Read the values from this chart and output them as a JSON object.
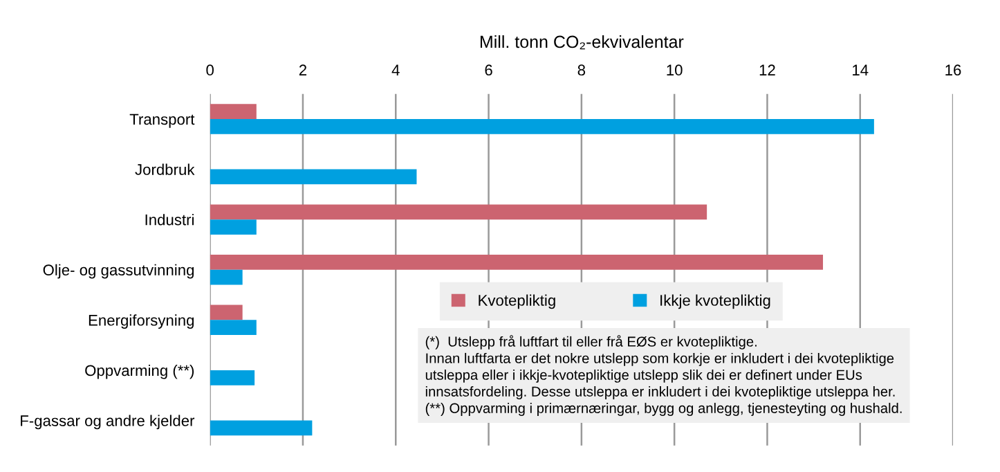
{
  "chart_data": {
    "type": "bar",
    "orientation": "horizontal",
    "title": "Mill. tonn CO₂-ekvivalentar",
    "categories": [
      "Transport",
      "Jordbruk",
      "Industri",
      "Olje- og gassutvinning",
      "Energiforsyning",
      "Oppvarming (**)",
      "F-gassar og andre kjelder"
    ],
    "series": [
      {
        "name": "Kvotepliktig",
        "color": "#cc6470",
        "values": [
          1.0,
          null,
          10.7,
          13.2,
          0.7,
          null,
          null
        ]
      },
      {
        "name": "Ikkje kvotepliktig",
        "color": "#00a0e0",
        "values": [
          14.3,
          4.45,
          1.0,
          0.7,
          1.0,
          0.96,
          2.2
        ]
      }
    ],
    "xlim": [
      0,
      16
    ],
    "xticks": [
      0,
      2,
      4,
      6,
      8,
      10,
      12,
      14,
      16
    ],
    "grid": "x",
    "legend": "right",
    "annotations": [
      "(*)  Utslepp frå luftfart til eller frå EØS er kvotepliktige.\nInnan luftfarta er det nokre utslepp som korkje er inkludert i dei kvotepliktige\nutsleppa eller i ikkje-kvotepliktige utslepp slik dei er definert under EUs\ninnsatsfordeling. Desse utsleppa er inkludert i dei kvotepliktige utsleppa her.\n(**) Oppvarming i primærnæringar, bygg og anlegg, tjenesteyting og hushald."
    ]
  }
}
